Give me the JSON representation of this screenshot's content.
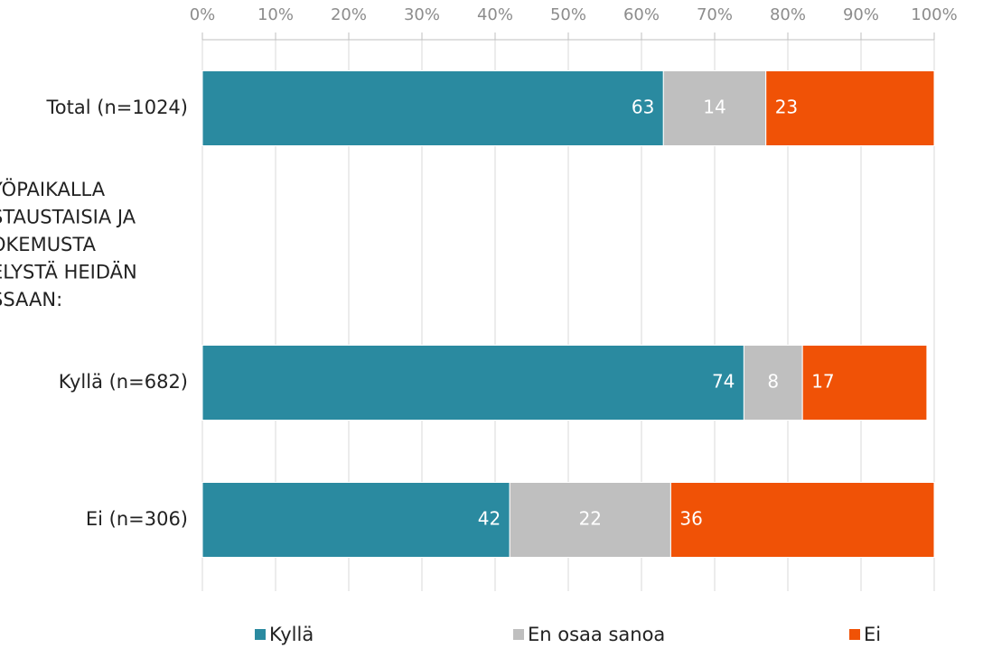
{
  "chart_data": {
    "type": "stacked_bar_horizontal",
    "categories": [
      "Total (n=1024)",
      "YÖPAIKALLA\nSTAUSTAISIA JA\nOKEMUSTA\nELYSTÄ HEIDÄN\nSSAAN:",
      "Kyllä (n=682)",
      "Ei (n=306)"
    ],
    "series": [
      {
        "name": "Kyllä",
        "color": "#2a8aa0",
        "values": [
          63,
          null,
          74,
          42
        ]
      },
      {
        "name": "En osaa sanoa",
        "color": "#bfbfbf",
        "values": [
          14,
          null,
          8,
          22
        ]
      },
      {
        "name": "Ei",
        "color": "#f05206",
        "values": [
          23,
          null,
          17,
          36
        ]
      }
    ],
    "xlim": [
      0,
      100
    ],
    "xticks": [
      {
        "value": 0,
        "label": "0%"
      },
      {
        "value": 10,
        "label": "10%"
      },
      {
        "value": 20,
        "label": "20%"
      },
      {
        "value": 30,
        "label": "30%"
      },
      {
        "value": 40,
        "label": "40%"
      },
      {
        "value": 50,
        "label": "50%"
      },
      {
        "value": 60,
        "label": "60%"
      },
      {
        "value": 70,
        "label": "70%"
      },
      {
        "value": 80,
        "label": "80%"
      },
      {
        "value": 90,
        "label": "90%"
      },
      {
        "value": 100,
        "label": "100%"
      }
    ],
    "grid": true,
    "legend": "bottom"
  }
}
